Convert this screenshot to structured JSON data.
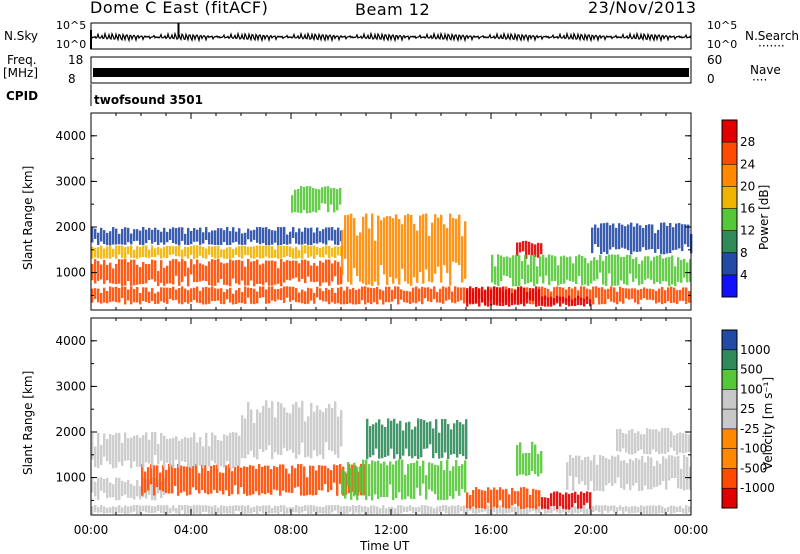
{
  "header": {
    "station": "Dome C East (fitACF)",
    "beam": "Beam 12",
    "date": "23/Nov/2013"
  },
  "strip_labels": {
    "nsky": "N.Sky",
    "nsky_ticks": [
      "10^5",
      "10^0"
    ],
    "nsearch": "N.Search",
    "nsearch_dots": "·······",
    "freq_label": "Freq.",
    "freq_unit": "[MHz]",
    "freq_ticks": [
      "18",
      "8"
    ],
    "nave": "Nave",
    "nave_dots": "····",
    "nave_ticks": [
      "60",
      "0"
    ],
    "cpid": "CPID",
    "cpid_value": "twofsound 3501"
  },
  "colors": {
    "scale": [
      "#1010ff",
      "#234aa5",
      "#2f8a5a",
      "#55c83a",
      "#f0b400",
      "#ff8a00",
      "#ff4a00",
      "#e00000"
    ],
    "velocity_scale": [
      "#e00000",
      "#ff4a00",
      "#ff8a00",
      "#c8c8c8",
      "#c8c8c8",
      "#55c83a",
      "#2f8a5a",
      "#234aa5"
    ]
  },
  "chart_data": [
    {
      "type": "heatmap",
      "panel": "power",
      "ylabel": "Slant Range [km]",
      "y_ticks": [
        1000,
        2000,
        3000,
        4000
      ],
      "ylim": [
        180,
        4500
      ],
      "x_ticks": [
        "00:00",
        "04:00",
        "08:00",
        "12:00",
        "16:00",
        "20:00",
        "00:00"
      ],
      "xlim_hours": [
        0,
        24
      ],
      "colorbar_label": "Power [dB]",
      "colorbar_ticks": [
        "4",
        "8",
        "12",
        "16",
        "20",
        "24",
        "28"
      ],
      "colorbar_range": [
        0,
        32
      ],
      "bands": [
        {
          "t0": 0,
          "t1": 24,
          "r0": 300,
          "r1": 700,
          "value": 26
        },
        {
          "t0": 0,
          "t1": 10,
          "r0": 700,
          "r1": 1300,
          "value": 27
        },
        {
          "t0": 0,
          "t1": 10,
          "r0": 1300,
          "r1": 1600,
          "value": 16
        },
        {
          "t0": 0,
          "t1": 10,
          "r0": 1600,
          "r1": 2000,
          "value": 7
        },
        {
          "t0": 10,
          "t1": 15,
          "r0": 700,
          "r1": 2300,
          "value": 22
        },
        {
          "t0": 8,
          "t1": 10,
          "r0": 2300,
          "r1": 2900,
          "value": 13
        },
        {
          "t0": 15,
          "t1": 18,
          "r0": 250,
          "r1": 700,
          "value": 29
        },
        {
          "t0": 18,
          "t1": 20,
          "r0": 250,
          "r1": 500,
          "value": 30
        },
        {
          "t0": 17,
          "t1": 18,
          "r0": 1300,
          "r1": 1700,
          "value": 28
        },
        {
          "t0": 16,
          "t1": 24,
          "r0": 700,
          "r1": 1400,
          "value": 12
        },
        {
          "t0": 20,
          "t1": 24,
          "r0": 1400,
          "r1": 2100,
          "value": 6
        }
      ]
    },
    {
      "type": "heatmap",
      "panel": "velocity",
      "ylabel": "Slant Range [km]",
      "y_ticks": [
        1000,
        2000,
        3000,
        4000
      ],
      "ylim": [
        180,
        4500
      ],
      "x_ticks": [
        "00:00",
        "04:00",
        "08:00",
        "12:00",
        "16:00",
        "20:00",
        "00:00"
      ],
      "xlabel": "Time UT",
      "xlim_hours": [
        0,
        24
      ],
      "colorbar_label": "Velocity [m s⁻¹]",
      "colorbar_ticks": [
        "1000",
        "500",
        "100",
        "25",
        "-25",
        "-100",
        "-500",
        "-1000"
      ],
      "bands": [
        {
          "t0": 0,
          "t1": 24,
          "r0": 200,
          "r1": 400,
          "value": 100
        },
        {
          "t0": 0,
          "t1": 3,
          "r0": 500,
          "r1": 1000,
          "value": 20
        },
        {
          "t0": 2,
          "t1": 11,
          "r0": 600,
          "r1": 1300,
          "value": -300
        },
        {
          "t0": 0,
          "t1": 6,
          "r0": 1200,
          "r1": 2000,
          "value": 0
        },
        {
          "t0": 6,
          "t1": 10,
          "r0": 1400,
          "r1": 2700,
          "value": 0
        },
        {
          "t0": 10,
          "t1": 15,
          "r0": 500,
          "r1": 1400,
          "value": 200
        },
        {
          "t0": 11,
          "t1": 15,
          "r0": 1400,
          "r1": 2300,
          "value": 600
        },
        {
          "t0": 15,
          "t1": 18,
          "r0": 300,
          "r1": 800,
          "value": -300
        },
        {
          "t0": 17,
          "t1": 18,
          "r0": 1000,
          "r1": 1800,
          "value": 200
        },
        {
          "t0": 18,
          "t1": 20,
          "r0": 300,
          "r1": 700,
          "value": -700
        },
        {
          "t0": 19,
          "t1": 24,
          "r0": 700,
          "r1": 1500,
          "value": 80
        },
        {
          "t0": 21,
          "t1": 24,
          "r0": 1500,
          "r1": 2100,
          "value": 20
        }
      ]
    }
  ]
}
